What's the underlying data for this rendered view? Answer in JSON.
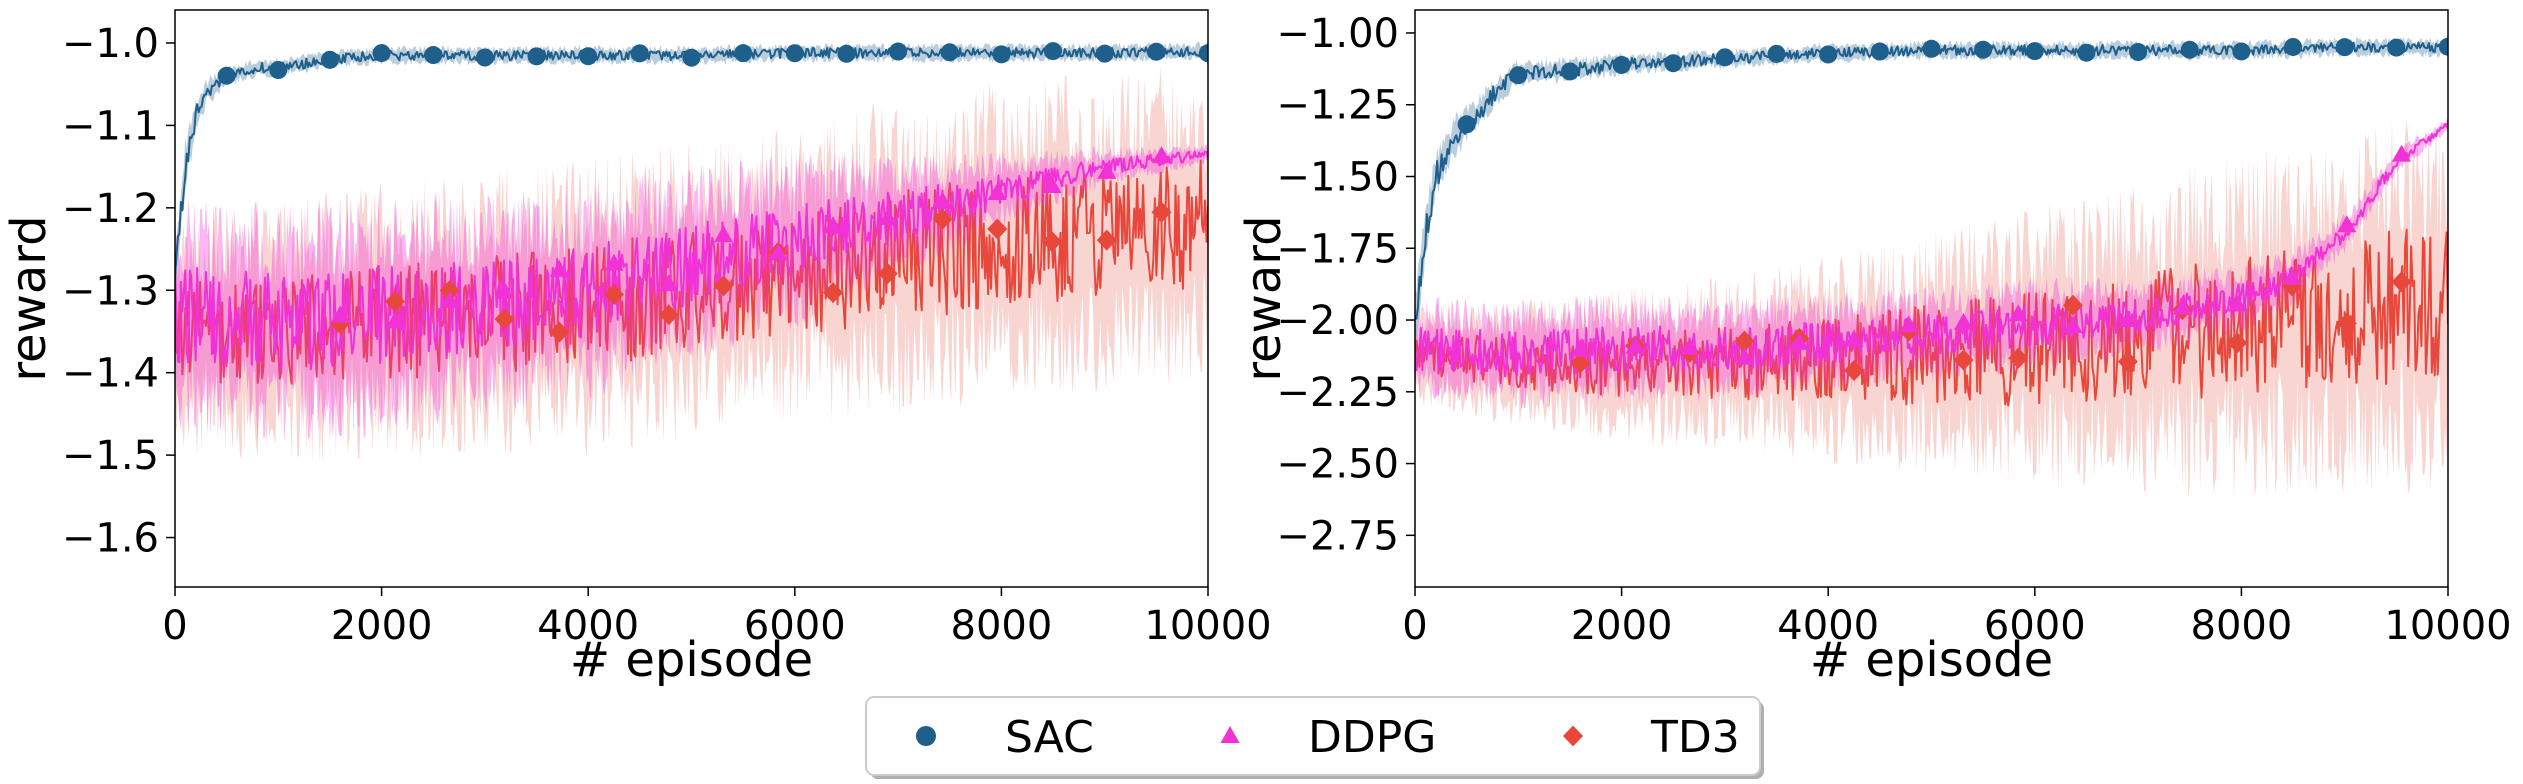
{
  "colors": {
    "SAC": "#1f5f8b",
    "DDPG": "#f032d6",
    "TD3": "#e8483b",
    "TD3_band": "#f4b3ad",
    "SAC_band": "#9bb8cf"
  },
  "legend": {
    "items": [
      {
        "label": "SAC",
        "marker": "circle",
        "color": "#1f5f8b"
      },
      {
        "label": "DDPG",
        "marker": "triangle",
        "color": "#f032d6"
      },
      {
        "label": "TD3",
        "marker": "diamond",
        "color": "#e8483b"
      }
    ],
    "placement": "bottom-center"
  },
  "chart_data": [
    {
      "type": "line",
      "xlabel": "# episode",
      "ylabel": "reward",
      "xlim": [
        0,
        10000
      ],
      "ylim": [
        -1.66,
        -0.96
      ],
      "xticks": [
        0,
        2000,
        4000,
        6000,
        8000,
        10000
      ],
      "xtick_labels": [
        "0",
        "2000",
        "4000",
        "6000",
        "8000",
        "10000"
      ],
      "yticks": [
        -1.6,
        -1.5,
        -1.4,
        -1.3,
        -1.2,
        -1.1,
        -1.0
      ],
      "ytick_labels": [
        "−1.6",
        "−1.5",
        "−1.4",
        "−1.3",
        "−1.2",
        "−1.1",
        "−1.0"
      ],
      "grid": false,
      "series": [
        {
          "name": "SAC",
          "x": [
            0,
            100,
            200,
            300,
            500,
            800,
            1000,
            1500,
            2000,
            2500,
            3000,
            4000,
            5000,
            6000,
            7000,
            8000,
            9000,
            10000
          ],
          "y": [
            -1.28,
            -1.15,
            -1.09,
            -1.06,
            -1.04,
            -1.03,
            -1.03,
            -1.02,
            -1.015,
            -1.015,
            -1.015,
            -1.015,
            -1.015,
            -1.012,
            -1.012,
            -1.012,
            -1.012,
            -1.01
          ],
          "band": [
            0.02,
            0.03,
            0.02,
            0.015,
            0.012,
            0.01,
            0.01,
            0.01,
            0.01,
            0.01,
            0.01,
            0.01,
            0.01,
            0.01,
            0.01,
            0.01,
            0.01,
            0.01
          ]
        },
        {
          "name": "DDPG",
          "x": [
            0,
            1000,
            2000,
            3000,
            4000,
            5000,
            6000,
            7000,
            8000,
            9000,
            10000
          ],
          "y": [
            -1.33,
            -1.34,
            -1.33,
            -1.32,
            -1.3,
            -1.27,
            -1.24,
            -1.21,
            -1.18,
            -1.15,
            -1.135
          ],
          "band": [
            0.12,
            0.12,
            0.12,
            0.11,
            0.11,
            0.1,
            0.09,
            0.06,
            0.04,
            0.02,
            0.01
          ]
        },
        {
          "name": "TD3",
          "x": [
            0,
            1000,
            2000,
            3000,
            4000,
            5000,
            6000,
            7000,
            8000,
            9000,
            10000
          ],
          "y": [
            -1.35,
            -1.35,
            -1.34,
            -1.33,
            -1.32,
            -1.3,
            -1.28,
            -1.26,
            -1.24,
            -1.23,
            -1.22
          ],
          "band": [
            0.12,
            0.13,
            0.14,
            0.14,
            0.15,
            0.15,
            0.15,
            0.16,
            0.16,
            0.16,
            0.16
          ]
        }
      ]
    },
    {
      "type": "line",
      "xlabel": "# episode",
      "ylabel": "reward",
      "xlim": [
        0,
        10000
      ],
      "ylim": [
        -2.93,
        -0.92
      ],
      "xticks": [
        0,
        2000,
        4000,
        6000,
        8000,
        10000
      ],
      "xtick_labels": [
        "0",
        "2000",
        "4000",
        "6000",
        "8000",
        "10000"
      ],
      "yticks": [
        -2.75,
        -2.5,
        -2.25,
        -2.0,
        -1.75,
        -1.5,
        -1.25,
        -1.0
      ],
      "ytick_labels": [
        "−2.75",
        "−2.50",
        "−2.25",
        "−2.00",
        "−1.75",
        "−1.50",
        "−1.25",
        "−1.00"
      ],
      "grid": false,
      "series": [
        {
          "name": "SAC",
          "x": [
            0,
            100,
            200,
            400,
            600,
            800,
            1000,
            1500,
            2000,
            3000,
            4000,
            5000,
            6000,
            7000,
            8000,
            9000,
            10000
          ],
          "y": [
            -2.0,
            -1.7,
            -1.5,
            -1.36,
            -1.28,
            -1.2,
            -1.14,
            -1.13,
            -1.11,
            -1.09,
            -1.07,
            -1.06,
            -1.06,
            -1.06,
            -1.06,
            -1.05,
            -1.05
          ],
          "band": [
            0.1,
            0.1,
            0.08,
            0.07,
            0.06,
            0.05,
            0.04,
            0.04,
            0.035,
            0.03,
            0.03,
            0.03,
            0.03,
            0.03,
            0.03,
            0.03,
            0.03
          ]
        },
        {
          "name": "DDPG",
          "x": [
            0,
            1000,
            2000,
            3000,
            4000,
            5000,
            6000,
            7000,
            8000,
            8500,
            9000,
            9500,
            10000
          ],
          "y": [
            -2.1,
            -2.12,
            -2.1,
            -2.1,
            -2.08,
            -2.05,
            -2.02,
            -1.99,
            -1.92,
            -1.85,
            -1.7,
            -1.45,
            -1.32
          ],
          "band": [
            0.15,
            0.16,
            0.16,
            0.15,
            0.15,
            0.14,
            0.14,
            0.12,
            0.1,
            0.08,
            0.06,
            0.04,
            0.02
          ]
        },
        {
          "name": "TD3",
          "x": [
            0,
            1000,
            2000,
            3000,
            4000,
            5000,
            6000,
            7000,
            8000,
            9000,
            10000
          ],
          "y": [
            -2.12,
            -2.15,
            -2.16,
            -2.15,
            -2.14,
            -2.12,
            -2.1,
            -2.06,
            -2.02,
            -1.97,
            -1.94
          ],
          "band": [
            0.15,
            0.18,
            0.22,
            0.25,
            0.3,
            0.35,
            0.4,
            0.45,
            0.5,
            0.52,
            0.55
          ]
        }
      ]
    }
  ]
}
